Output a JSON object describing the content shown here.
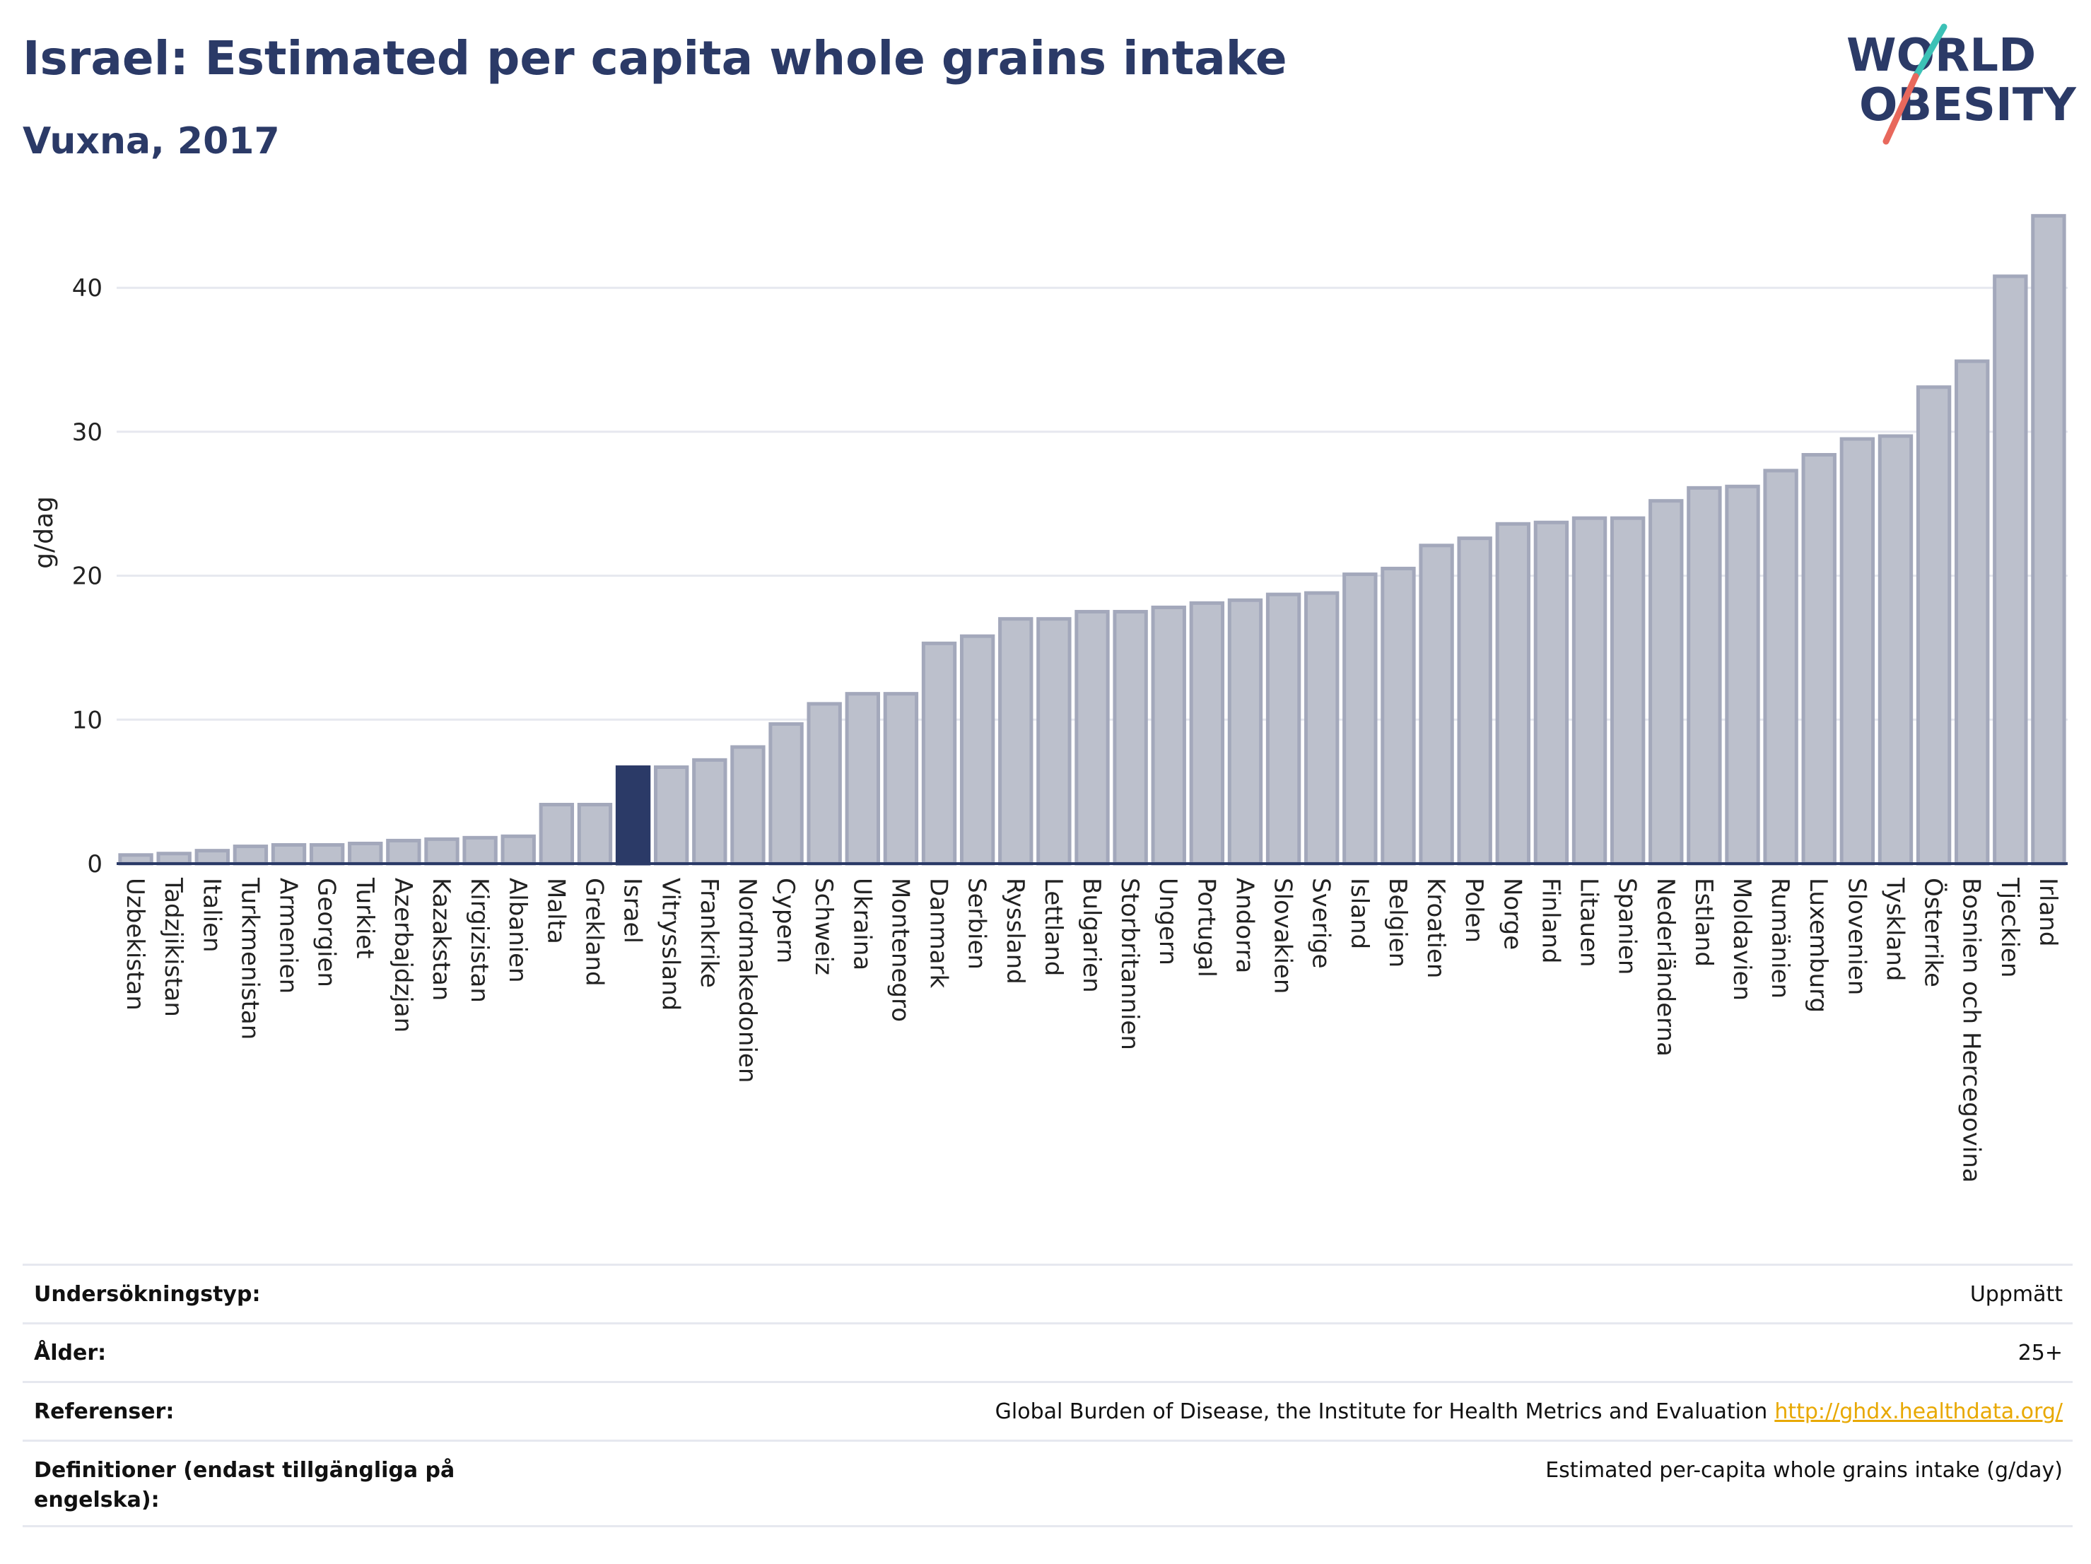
{
  "header": {
    "title": "Israel: Estimated per capita whole grains intake",
    "subtitle": "Vuxna, 2017"
  },
  "logo": {
    "line1": "WORLD",
    "line2": "OBESITY",
    "accent_teal": "#3cc1b6",
    "accent_red": "#e8685c",
    "text_color": "#2b3a67"
  },
  "colors": {
    "bar_fill": "#bcc0cc",
    "bar_stroke": "#a3a8bb",
    "highlight": "#2b3a67",
    "grid": "#e6e8ef"
  },
  "chart_data": {
    "type": "bar",
    "title": "Israel: Estimated per capita whole grains intake",
    "subtitle": "Vuxna, 2017",
    "ylabel": "g/dag",
    "xlabel": "",
    "ylim": [
      0,
      46
    ],
    "yticks": [
      0,
      10,
      20,
      30,
      40
    ],
    "highlight": "Israel",
    "grid": true,
    "categories": [
      "Uzbekistan",
      "Tadzjikistan",
      "Italien",
      "Turkmenistan",
      "Armenien",
      "Georgien",
      "Turkiet",
      "Azerbajdzjan",
      "Kazakstan",
      "Kirgizistan",
      "Albanien",
      "Malta",
      "Grekland",
      "Israel",
      "Vitryssland",
      "Frankrike",
      "Nordmakedonien",
      "Cypern",
      "Schweiz",
      "Ukraina",
      "Montenegro",
      "Danmark",
      "Serbien",
      "Ryssland",
      "Lettland",
      "Bulgarien",
      "Storbritannien",
      "Ungern",
      "Portugal",
      "Andorra",
      "Slovakien",
      "Sverige",
      "Island",
      "Belgien",
      "Kroatien",
      "Polen",
      "Norge",
      "Finland",
      "Litauen",
      "Spanien",
      "Nederländerna",
      "Estland",
      "Moldavien",
      "Rumänien",
      "Luxemburg",
      "Slovenien",
      "Tyskland",
      "Österrike",
      "Bosnien och Hercegovina",
      "Tjeckien",
      "Irland"
    ],
    "values": [
      0.6,
      0.7,
      0.9,
      1.2,
      1.3,
      1.3,
      1.4,
      1.6,
      1.7,
      1.8,
      1.9,
      4.1,
      4.1,
      6.7,
      6.7,
      7.2,
      8.1,
      9.7,
      11.1,
      11.8,
      11.8,
      15.3,
      15.8,
      17.0,
      17.0,
      17.5,
      17.5,
      17.8,
      18.1,
      18.3,
      18.7,
      18.8,
      20.1,
      20.5,
      22.1,
      22.6,
      23.6,
      23.7,
      24.0,
      24.0,
      25.2,
      26.1,
      26.2,
      27.3,
      28.4,
      29.5,
      29.7,
      33.1,
      34.9,
      40.8,
      45.0
    ]
  },
  "meta": {
    "rows": [
      {
        "label": "Undersökningstyp:",
        "value": "Uppmätt"
      },
      {
        "label": "Ålder:",
        "value": "25+"
      },
      {
        "label": "Referenser:",
        "value": "Global Burden of Disease, the Institute for Health Metrics and Evaluation",
        "link": "http://ghdx.healthdata.org/"
      },
      {
        "label": "Definitioner (endast tillgängliga på engelska):",
        "value": "Estimated per-capita whole grains intake (g/day)"
      }
    ]
  }
}
